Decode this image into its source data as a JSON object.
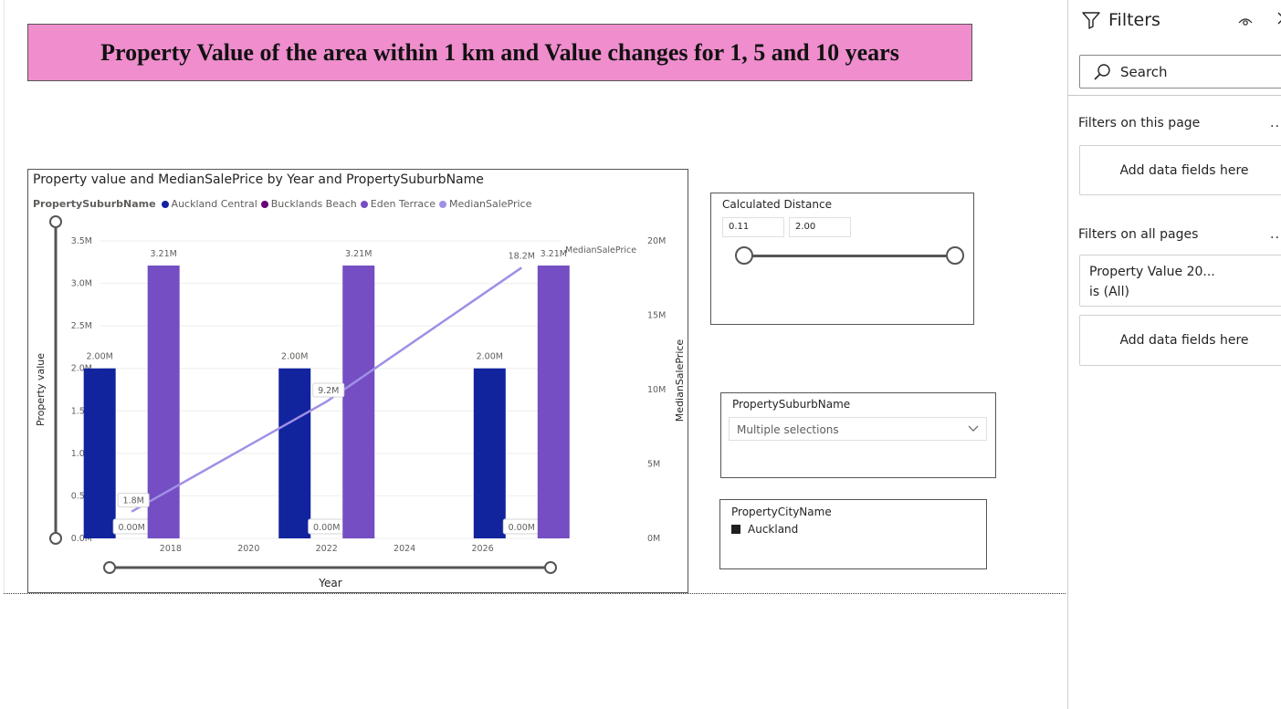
{
  "report_title": "Property Value of the area within 1 km and Value changes for 1, 5 and 10 years",
  "chart": {
    "title": "Property value and MedianSalePrice by Year and PropertySuburbName",
    "legend_title": "PropertySuburbName",
    "legend": [
      {
        "name": "Auckland Central",
        "color": "#12239e"
      },
      {
        "name": "Bucklands Beach",
        "color": "#6b007b"
      },
      {
        "name": "Eden Terrace",
        "color": "#744ec2"
      },
      {
        "name": "MedianSalePrice",
        "color": "#a08fe6"
      }
    ],
    "y_left_label": "Property value",
    "y_right_label": "MedianSalePrice",
    "x_label": "Year",
    "line_end_label": "MedianSalePrice",
    "y_left_ticks": [
      "0.0M",
      "0.5M",
      "1.0M",
      "1.5M",
      "2.0M",
      "2.5M",
      "3.0M",
      "3.5M"
    ],
    "y_right_ticks": [
      "0M",
      "5M",
      "10M",
      "15M",
      "20M"
    ],
    "x_ticks": [
      "2018",
      "2020",
      "2022",
      "2024",
      "2026"
    ]
  },
  "chart_data": {
    "type": "bar",
    "title": "Property value and MedianSalePrice by Year and PropertySuburbName",
    "xlabel": "Year",
    "ylabel": "Property value",
    "y2label": "MedianSalePrice",
    "ylim": [
      0,
      3.5
    ],
    "y2lim": [
      0,
      20
    ],
    "y_unit": "M",
    "xlim": [
      2016.2,
      2028
    ],
    "grid": true,
    "legend_position": "top-left",
    "x": [
      2017,
      2022,
      2027
    ],
    "series": [
      {
        "name": "Auckland Central",
        "kind": "bar",
        "values": [
          2.0,
          2.0,
          2.0
        ],
        "labels": [
          "2.00M",
          "2.00M",
          "2.00M"
        ]
      },
      {
        "name": "Bucklands Beach",
        "kind": "bar",
        "values": [
          0.0,
          0.0,
          0.0
        ],
        "labels": [
          "0.00M",
          "0.00M",
          "0.00M"
        ]
      },
      {
        "name": "Eden Terrace",
        "kind": "bar",
        "values": [
          3.21,
          3.21,
          3.21
        ],
        "labels": [
          "3.21M",
          "3.21M",
          "3.21M"
        ]
      },
      {
        "name": "MedianSalePrice",
        "kind": "line",
        "axis": "right",
        "values": [
          1.8,
          9.2,
          18.2
        ],
        "labels": [
          "1.8M",
          "9.2M",
          "18.2M"
        ]
      }
    ]
  },
  "calculated_distance": {
    "label": "Calculated Distance",
    "min_value": "0.11",
    "max_value": "2.00"
  },
  "suburb_slicer": {
    "label": "PropertySuburbName",
    "selected": "Multiple selections"
  },
  "city_slicer": {
    "label": "PropertyCityName",
    "items": [
      "Auckland"
    ]
  },
  "filters_pane": {
    "title": "Filters",
    "search_placeholder": "Search",
    "on_this_page": "Filters on this page",
    "add_fields_1": "Add data fields here",
    "on_all_pages": "Filters on all pages",
    "filter_card_line1": "Property Value 20...",
    "filter_card_line2": "is (All)",
    "add_fields_2": "Add data fields here",
    "more": "..."
  }
}
